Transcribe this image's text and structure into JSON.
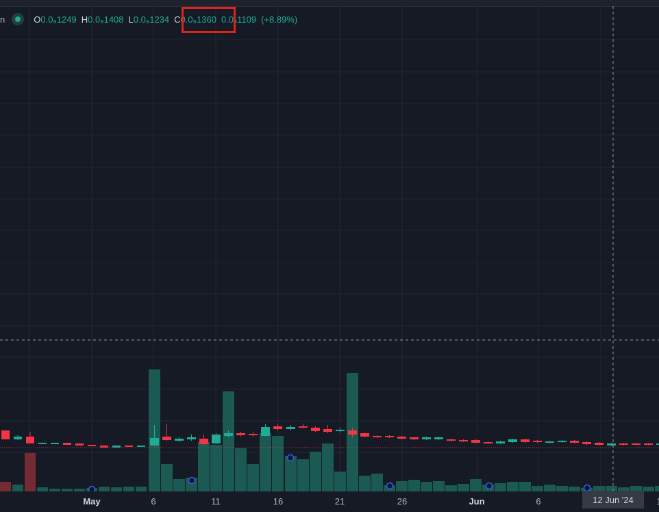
{
  "legend": {
    "cut_text": "n",
    "open_key": "O",
    "open_value": "0.0₈1249",
    "high_key": "H",
    "high_value": "0.0₈1408",
    "low_key": "L",
    "low_value": "0.0₈1234",
    "close_key": "C",
    "close_value": "0.0₈1360",
    "change_value": "0.0₉1109",
    "change_pct": "(+8.89%)"
  },
  "xaxis": {
    "labels": [
      {
        "text": "May",
        "bold": true
      },
      {
        "text": "6",
        "bold": false
      },
      {
        "text": "11",
        "bold": false
      },
      {
        "text": "16",
        "bold": false
      },
      {
        "text": "21",
        "bold": false
      },
      {
        "text": "26",
        "bold": false
      },
      {
        "text": "Jun",
        "bold": true
      },
      {
        "text": "6",
        "bold": false
      },
      {
        "text": "1",
        "bold": false
      }
    ],
    "crosshair_date": "12 Jun '24"
  },
  "colors": {
    "background": "#161a25",
    "up": "#22ab94",
    "down": "#f23645",
    "volume_up": "#1b5e55",
    "volume_down": "#7a2c35",
    "grid": "#232732",
    "highlight": "#e0231b"
  },
  "icons": {
    "status_dot": "circle-dot-icon",
    "event_marker": "circle-marker-icon"
  }
}
